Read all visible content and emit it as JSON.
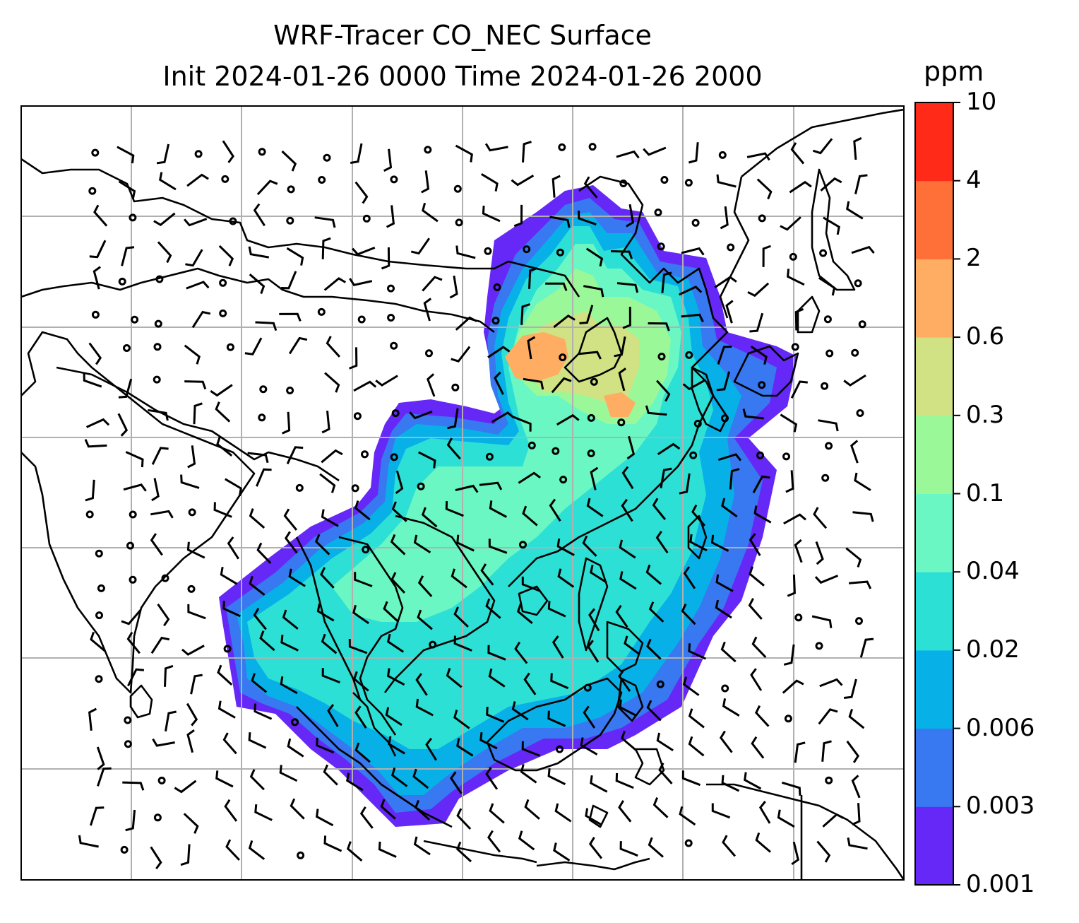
{
  "title": {
    "line1": "WRF-Tracer CO_NEC Surface",
    "line2": "Init 2024-01-26 0000 Time 2024-01-26 2000"
  },
  "colorbar": {
    "unit": "ppm",
    "ticks": [
      "0.001",
      "0.003",
      "0.006",
      "0.02",
      "0.04",
      "0.1",
      "0.3",
      "0.6",
      "2",
      "4",
      "10"
    ],
    "colors": [
      "#6528f7",
      "#3878f0",
      "#08b0e8",
      "#2de0d6",
      "#6af7c3",
      "#9bf898",
      "#d0e283",
      "#ffad62",
      "#ff7038",
      "#ff2a18"
    ]
  },
  "map": {
    "background": "#ffffff",
    "gridline_color": "#b0b0b0",
    "coastline_color": "#000000"
  }
}
